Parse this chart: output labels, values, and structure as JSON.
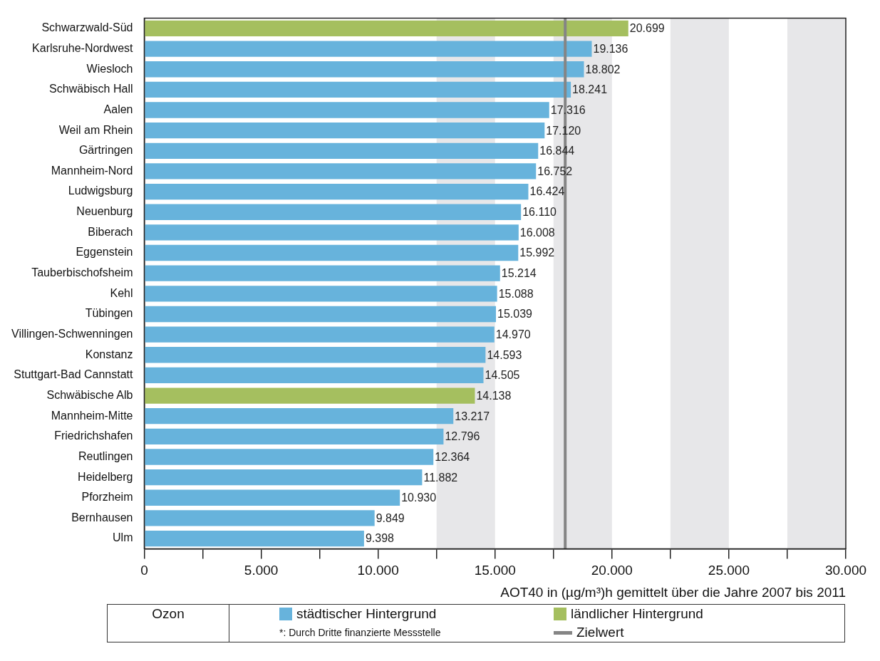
{
  "chart_data": {
    "type": "bar",
    "orientation": "horizontal",
    "legend_title": "Ozon",
    "xlabel": "AOT40 in (µg/m³)h gemittelt über die Jahre 2007 bis 2011",
    "categories": [
      "Schwarzwald-Süd",
      "Karlsruhe-Nordwest",
      "Wiesloch",
      "Schwäbisch Hall",
      "Aalen",
      "Weil am Rhein",
      "Gärtringen",
      "Mannheim-Nord",
      "Ludwigsburg",
      "Neuenburg",
      "Biberach",
      "Eggenstein",
      "Tauberbischofsheim",
      "Kehl",
      "Tübingen",
      "Villingen-Schwenningen",
      "Konstanz",
      "Stuttgart-Bad Cannstatt",
      "Schwäbische Alb",
      "Mannheim-Mitte",
      "Friedrichshafen",
      "Reutlingen",
      "Heidelberg",
      "Pforzheim",
      "Bernhausen",
      "Ulm"
    ],
    "series": [
      {
        "name": "städtischer Hintergrund",
        "color": "#67b3dc",
        "values": [
          null,
          19136,
          18802,
          18241,
          17316,
          17120,
          16844,
          16752,
          16424,
          16110,
          16008,
          15992,
          15214,
          15088,
          15039,
          14970,
          14593,
          14505,
          null,
          13217,
          12796,
          12364,
          11882,
          10930,
          9849,
          9398
        ],
        "value_labels": [
          null,
          "19.136",
          "18.802",
          "18.241",
          "17.316",
          "17.120",
          "16.844",
          "16.752",
          "16.424",
          "16.110",
          "16.008",
          "15.992",
          "15.214",
          "15.088",
          "15.039",
          "14.970",
          "14.593",
          "14.505",
          null,
          "13.217",
          "12.796",
          "12.364",
          "11.882",
          "10.930",
          "9.849",
          "9.398"
        ]
      },
      {
        "name": "ländlicher Hintergrund",
        "color": "#a5bf5f",
        "values": [
          20699,
          null,
          null,
          null,
          null,
          null,
          null,
          null,
          null,
          null,
          null,
          null,
          null,
          null,
          null,
          null,
          null,
          null,
          14138,
          null,
          null,
          null,
          null,
          null,
          null,
          null
        ],
        "value_labels": [
          "20.699",
          null,
          null,
          null,
          null,
          null,
          null,
          null,
          null,
          null,
          null,
          null,
          null,
          null,
          null,
          null,
          null,
          null,
          "14.138",
          null,
          null,
          null,
          null,
          null,
          null,
          null
        ]
      }
    ],
    "xlim": [
      0,
      30000
    ],
    "xticks": [
      {
        "value": 0,
        "label": "0"
      },
      {
        "value": 2500,
        "label": null
      },
      {
        "value": 5000,
        "label": "5.000"
      },
      {
        "value": 7500,
        "label": null
      },
      {
        "value": 10000,
        "label": "10.000"
      },
      {
        "value": 12500,
        "label": null
      },
      {
        "value": 15000,
        "label": "15.000"
      },
      {
        "value": 17500,
        "label": null
      },
      {
        "value": 20000,
        "label": "20.000"
      },
      {
        "value": 22500,
        "label": null
      },
      {
        "value": 25000,
        "label": "25.000"
      },
      {
        "value": 27500,
        "label": null
      },
      {
        "value": 30000,
        "label": "30.000"
      }
    ],
    "bands": [
      {
        "axis": "x",
        "from": 12500,
        "to": 15000,
        "color": "#e7e7e9"
      },
      {
        "axis": "x",
        "from": 17500,
        "to": 20000,
        "color": "#e7e7e9"
      },
      {
        "axis": "x",
        "from": 22500,
        "to": 25000,
        "color": "#e7e7e9"
      },
      {
        "axis": "x",
        "from": 27500,
        "to": 30000,
        "color": "#e7e7e9"
      }
    ],
    "ref_lines": [
      {
        "axis": "x",
        "value": 18000,
        "label": "Zielwert",
        "color": "#858585"
      }
    ],
    "legend": "bottom",
    "annotations": [
      "*: Durch Dritte finanzierte Messstelle"
    ]
  }
}
